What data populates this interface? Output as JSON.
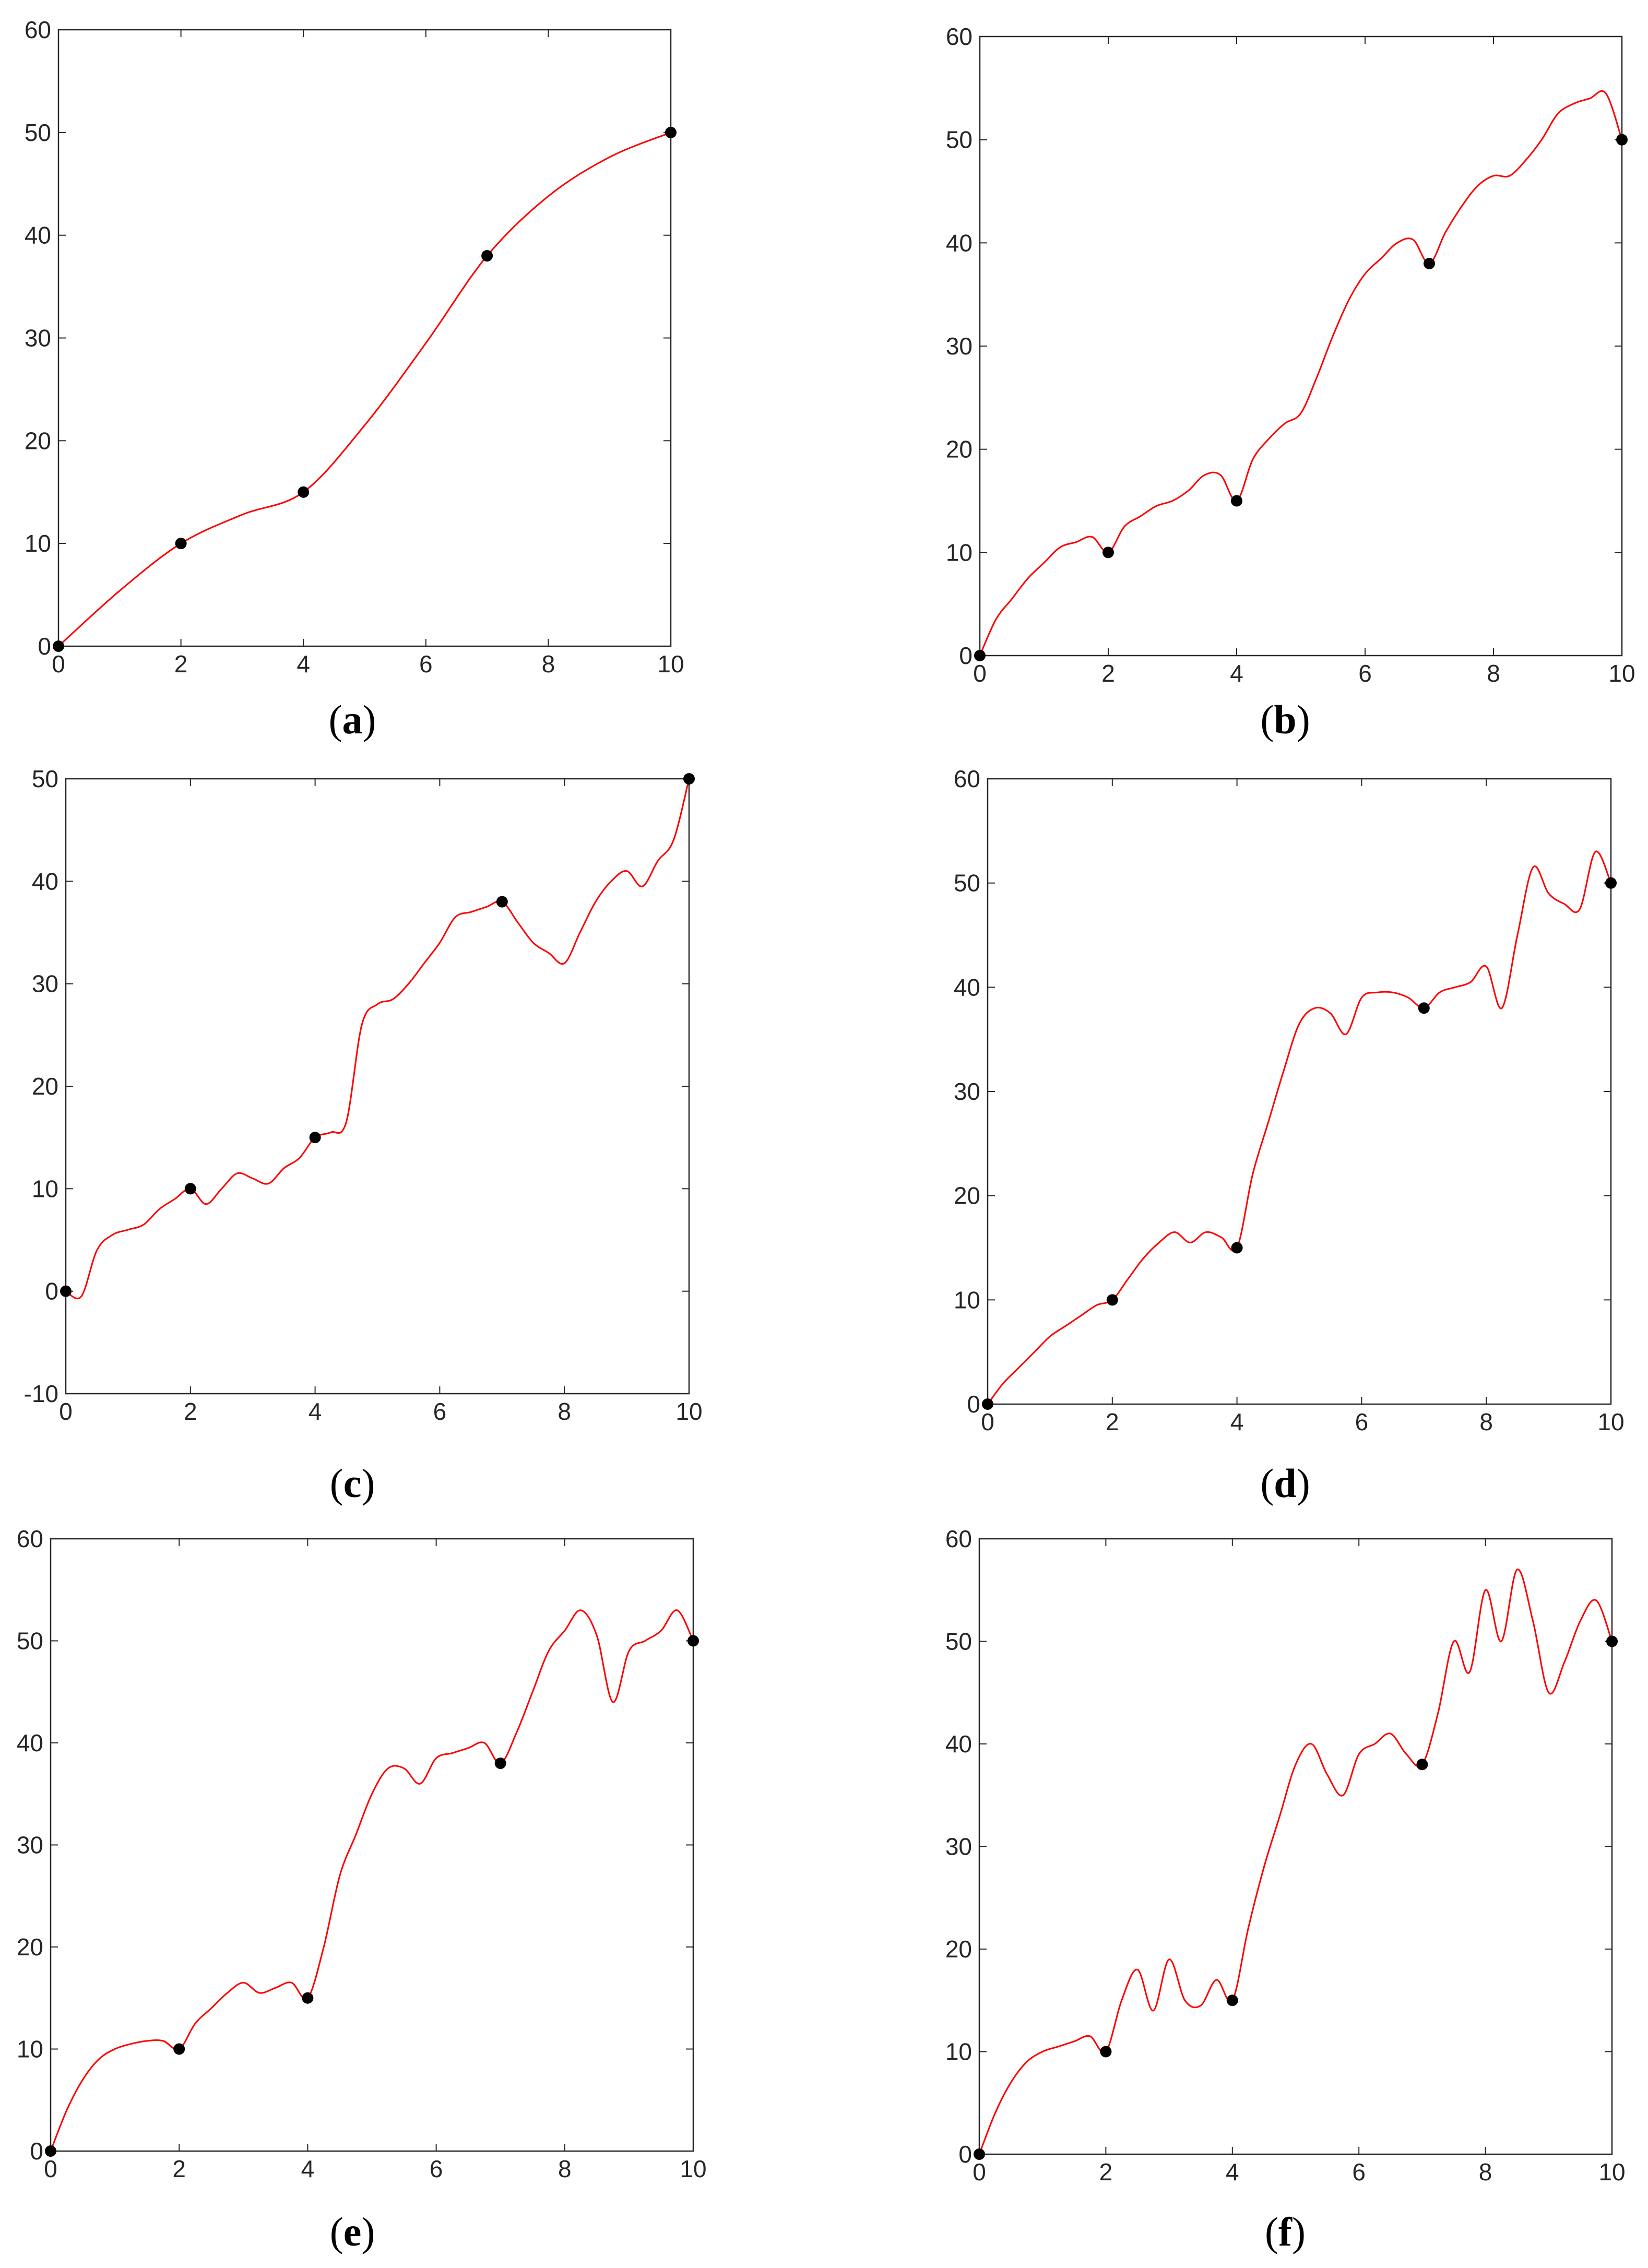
{
  "figure": {
    "series_color": "#ff0000",
    "marker_color": "#000000",
    "axis_color": "#262626"
  },
  "chart_data": [
    {
      "type": "line",
      "panel": "a",
      "caption_letter": "a",
      "xlim": [
        0,
        10
      ],
      "ylim": [
        0,
        60
      ],
      "xticks": [
        "0",
        "2",
        "4",
        "6",
        "8",
        "10"
      ],
      "yticks": [
        "0",
        "10",
        "20",
        "30",
        "40",
        "50",
        "60"
      ],
      "grid": false,
      "legend": "none",
      "interpolation_points": {
        "x": [
          0,
          2,
          4,
          7,
          10
        ],
        "y": [
          0,
          10,
          15,
          38,
          50
        ]
      },
      "series_x": [
        0,
        1,
        2,
        3,
        4,
        5,
        6,
        7,
        8,
        9,
        10
      ],
      "series_y": [
        0,
        5.4,
        10,
        12.8,
        15,
        21.5,
        29.5,
        38,
        43.8,
        47.6,
        50
      ]
    },
    {
      "type": "line",
      "panel": "b",
      "caption_letter": "b",
      "xlim": [
        0,
        10
      ],
      "ylim": [
        0,
        60
      ],
      "xticks": [
        "0",
        "2",
        "4",
        "6",
        "8",
        "10"
      ],
      "yticks": [
        "0",
        "10",
        "20",
        "30",
        "40",
        "50",
        "60"
      ],
      "grid": false,
      "legend": "none",
      "interpolation_points": {
        "x": [
          0,
          2,
          4,
          7,
          10
        ],
        "y": [
          0,
          10,
          15,
          38,
          50
        ]
      },
      "series_x": [
        0,
        0.25,
        0.5,
        0.75,
        1,
        1.25,
        1.5,
        1.75,
        2,
        2.25,
        2.5,
        2.75,
        3,
        3.25,
        3.5,
        3.75,
        4,
        4.25,
        4.5,
        4.75,
        5,
        5.25,
        5.5,
        5.75,
        6,
        6.25,
        6.5,
        6.75,
        7,
        7.25,
        7.5,
        7.75,
        8,
        8.25,
        8.5,
        8.75,
        9,
        9.25,
        9.5,
        9.75,
        10
      ],
      "series_y": [
        0,
        3.5,
        5.5,
        7.5,
        9,
        10.5,
        11,
        11.5,
        10,
        12.5,
        13.5,
        14.5,
        15,
        16,
        17.5,
        17.5,
        15,
        19,
        21,
        22.5,
        23.5,
        27,
        31,
        34.5,
        37,
        38.5,
        40,
        40.3,
        38,
        41,
        43.5,
        45.5,
        46.5,
        46.5,
        48,
        50,
        52.5,
        53.5,
        54,
        54.5,
        50
      ]
    },
    {
      "type": "line",
      "panel": "c",
      "caption_letter": "c",
      "xlim": [
        0,
        10
      ],
      "ylim": [
        -10,
        50
      ],
      "xticks": [
        "0",
        "2",
        "4",
        "6",
        "8",
        "10"
      ],
      "yticks": [
        "-10",
        "0",
        "10",
        "20",
        "30",
        "40",
        "50"
      ],
      "grid": false,
      "legend": "none",
      "interpolation_points": {
        "x": [
          0,
          2,
          4,
          7,
          10
        ],
        "y": [
          0,
          10,
          15,
          38,
          50
        ]
      },
      "series_x": [
        0,
        0.25,
        0.5,
        0.75,
        1,
        1.25,
        1.5,
        1.75,
        2,
        2.25,
        2.5,
        2.75,
        3,
        3.25,
        3.5,
        3.75,
        4,
        4.25,
        4.5,
        4.75,
        5,
        5.25,
        5.5,
        5.75,
        6,
        6.25,
        6.5,
        6.75,
        7,
        7.25,
        7.5,
        7.75,
        8,
        8.25,
        8.5,
        8.75,
        9,
        9.25,
        9.5,
        9.75,
        10
      ],
      "series_y": [
        0,
        -0.5,
        4,
        5.5,
        6,
        6.5,
        8,
        9,
        10,
        8.5,
        10,
        11.5,
        11,
        10.5,
        12,
        13,
        15,
        15.5,
        16.5,
        26,
        28,
        28.5,
        30,
        32,
        34,
        36.5,
        37,
        37.5,
        38,
        36,
        34,
        33,
        32,
        35,
        38,
        40,
        41,
        39.5,
        42,
        44,
        50
      ]
    },
    {
      "type": "line",
      "panel": "d",
      "caption_letter": "d",
      "xlim": [
        0,
        10
      ],
      "ylim": [
        0,
        60
      ],
      "xticks": [
        "0",
        "2",
        "4",
        "6",
        "8",
        "10"
      ],
      "yticks": [
        "0",
        "10",
        "20",
        "30",
        "40",
        "50",
        "60"
      ],
      "grid": false,
      "legend": "none",
      "interpolation_points": {
        "x": [
          0,
          2,
          4,
          7,
          10
        ],
        "y": [
          0,
          10,
          15,
          38,
          50
        ]
      },
      "series_x": [
        0,
        0.25,
        0.5,
        0.75,
        1,
        1.25,
        1.5,
        1.75,
        2,
        2.25,
        2.5,
        2.75,
        3,
        3.25,
        3.5,
        3.75,
        4,
        4.25,
        4.5,
        4.75,
        5,
        5.25,
        5.5,
        5.75,
        6,
        6.25,
        6.5,
        6.75,
        7,
        7.25,
        7.5,
        7.75,
        8,
        8.25,
        8.5,
        8.75,
        9,
        9.25,
        9.5,
        9.75,
        10
      ],
      "series_y": [
        0,
        2,
        3.5,
        5,
        6.5,
        7.5,
        8.5,
        9.5,
        10,
        12,
        14,
        15.5,
        16.5,
        15.5,
        16.5,
        16,
        15,
        22,
        27,
        32,
        36.5,
        38,
        37.5,
        35.5,
        39,
        39.5,
        39.5,
        39,
        38,
        39.5,
        40,
        40.5,
        42,
        38,
        45,
        51.5,
        49,
        48,
        47.5,
        53,
        50
      ]
    },
    {
      "type": "line",
      "panel": "e",
      "caption_letter": "e",
      "xlim": [
        0,
        10
      ],
      "ylim": [
        0,
        60
      ],
      "xticks": [
        "0",
        "2",
        "4",
        "6",
        "8",
        "10"
      ],
      "yticks": [
        "0",
        "10",
        "20",
        "30",
        "40",
        "50",
        "60"
      ],
      "grid": false,
      "legend": "none",
      "interpolation_points": {
        "x": [
          0,
          2,
          4,
          7,
          10
        ],
        "y": [
          0,
          10,
          15,
          38,
          50
        ]
      },
      "series_x": [
        0,
        0.25,
        0.5,
        0.75,
        1,
        1.25,
        1.5,
        1.75,
        2,
        2.25,
        2.5,
        2.75,
        3,
        3.25,
        3.5,
        3.75,
        4,
        4.25,
        4.5,
        4.75,
        5,
        5.25,
        5.5,
        5.75,
        6,
        6.25,
        6.5,
        6.75,
        7,
        7.25,
        7.5,
        7.75,
        8,
        8.25,
        8.5,
        8.75,
        9,
        9.25,
        9.5,
        9.75,
        10
      ],
      "series_y": [
        0,
        4,
        7,
        9,
        10,
        10.5,
        10.8,
        10.8,
        10,
        12.5,
        14,
        15.5,
        16.5,
        15.5,
        16,
        16.5,
        15,
        20,
        27,
        31,
        35,
        37.5,
        37.5,
        36,
        38.5,
        39,
        39.5,
        40,
        38,
        41,
        45,
        49,
        51,
        53,
        50.5,
        44,
        49,
        50,
        51,
        53,
        50
      ]
    },
    {
      "type": "line",
      "panel": "f",
      "caption_letter": "f",
      "xlim": [
        0,
        10
      ],
      "ylim": [
        0,
        60
      ],
      "xticks": [
        "0",
        "2",
        "4",
        "6",
        "8",
        "10"
      ],
      "yticks": [
        "0",
        "10",
        "20",
        "30",
        "40",
        "50",
        "60"
      ],
      "grid": false,
      "legend": "none",
      "interpolation_points": {
        "x": [
          0,
          2,
          4,
          7,
          10
        ],
        "y": [
          0,
          10,
          15,
          38,
          50
        ]
      },
      "series_x": [
        0,
        0.25,
        0.5,
        0.75,
        1,
        1.25,
        1.5,
        1.75,
        2,
        2.25,
        2.5,
        2.75,
        3,
        3.25,
        3.5,
        3.75,
        4,
        4.25,
        4.5,
        4.75,
        5,
        5.25,
        5.5,
        5.75,
        6,
        6.25,
        6.5,
        6.75,
        7,
        7.25,
        7.5,
        7.75,
        8,
        8.25,
        8.5,
        8.75,
        9,
        9.25,
        9.5,
        9.75,
        10
      ],
      "series_y": [
        0,
        4,
        7,
        9,
        10,
        10.5,
        11,
        11.5,
        10,
        15,
        18,
        14,
        19,
        15,
        14.5,
        17,
        15,
        22,
        28,
        33,
        38,
        40,
        37,
        35,
        39,
        40,
        41,
        39,
        38,
        43,
        50,
        47,
        55,
        50,
        57,
        52,
        45,
        48,
        52,
        54,
        50
      ]
    }
  ]
}
